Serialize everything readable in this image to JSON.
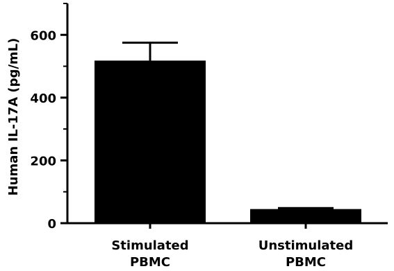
{
  "chart_data": {
    "type": "bar",
    "categories": [
      [
        "Stimulated",
        "PBMC"
      ],
      [
        "Unstimulated",
        "PBMC"
      ]
    ],
    "values": [
      518,
      45
    ],
    "errors": [
      57,
      3
    ],
    "ylabel": "Human IL-17A (pg/mL)",
    "xlabel": "",
    "ylim": [
      0,
      700
    ],
    "yticks": [
      0,
      200,
      400,
      600
    ],
    "minor_yticks": [
      100,
      300,
      500,
      700
    ],
    "grid": false,
    "bar_color": "#000000",
    "axis_color": "#000000"
  }
}
